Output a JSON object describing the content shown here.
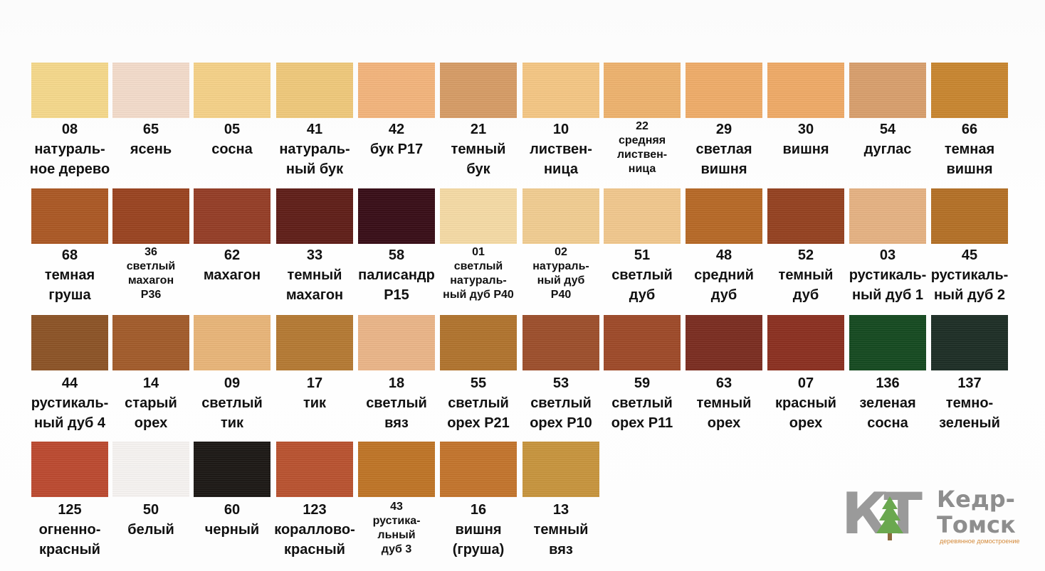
{
  "swatches": [
    {
      "code": "08",
      "name": "натураль-\nное дерево",
      "color": "#f6d98c"
    },
    {
      "code": "65",
      "name": "ясень",
      "color": "#f4dccb"
    },
    {
      "code": "05",
      "name": "сосна",
      "color": "#f6d289"
    },
    {
      "code": "41",
      "name": "натураль-\nный бук",
      "color": "#f0c97c"
    },
    {
      "code": "42",
      "name": "бук Р17",
      "color": "#f4b57d"
    },
    {
      "code": "21",
      "name": "темный\nбук",
      "color": "#d79d67"
    },
    {
      "code": "10",
      "name": "листвен-\nница",
      "color": "#f5c785"
    },
    {
      "code": "22",
      "name": "средняя\nлиствен-\nница",
      "color": "#eeb36f"
    },
    {
      "code": "29",
      "name": "светлая\nвишня",
      "color": "#f0ad6a"
    },
    {
      "code": "30",
      "name": "вишня",
      "color": "#f0ab68"
    },
    {
      "code": "54",
      "name": "дуглас",
      "color": "#d9a06e"
    },
    {
      "code": "66",
      "name": "темная\nвишня",
      "color": "#c98731"
    },
    {
      "code": "68",
      "name": "темная\nгруша",
      "color": "#ac5a26"
    },
    {
      "code": "36",
      "name": "светлый\nмахагон\nР36",
      "color": "#9b4522"
    },
    {
      "code": "62",
      "name": "махагон",
      "color": "#963f28"
    },
    {
      "code": "33",
      "name": "темный\nмахагон",
      "color": "#61201a"
    },
    {
      "code": "58",
      "name": "палисандр\nР15",
      "color": "#3a0f19"
    },
    {
      "code": "01",
      "name": "светлый\nнатураль-\nный дуб Р40",
      "color": "#f6dba6"
    },
    {
      "code": "02",
      "name": "натураль-\nный дуб\nР40",
      "color": "#f2cd92"
    },
    {
      "code": "51",
      "name": "светлый\nдуб",
      "color": "#f2c88e"
    },
    {
      "code": "48",
      "name": "средний\nдуб",
      "color": "#b86a28"
    },
    {
      "code": "52",
      "name": "темный\nдуб",
      "color": "#964322"
    },
    {
      "code": "03",
      "name": "рустикаль-\nный дуб 1",
      "color": "#e6b384"
    },
    {
      "code": "45",
      "name": "рустикаль-\nный дуб 2",
      "color": "#b57228"
    },
    {
      "code": "44",
      "name": "рустикаль-\nный дуб 4",
      "color": "#8d5528"
    },
    {
      "code": "14",
      "name": "старый\nорех",
      "color": "#a35d2c"
    },
    {
      "code": "09",
      "name": "светлый\nтик",
      "color": "#e9b67a"
    },
    {
      "code": "17",
      "name": "тик",
      "color": "#b67b35"
    },
    {
      "code": "18",
      "name": "светлый\nвяз",
      "color": "#ebb689"
    },
    {
      "code": "55",
      "name": "светлый\nорех Р21",
      "color": "#b27530"
    },
    {
      "code": "53",
      "name": "светлый\nорех Р10",
      "color": "#9e502d"
    },
    {
      "code": "59",
      "name": "светлый\nорех Р11",
      "color": "#9f4b2a"
    },
    {
      "code": "63",
      "name": "темный\nорех",
      "color": "#7c2e22"
    },
    {
      "code": "07",
      "name": "красный\nорех",
      "color": "#8c3122"
    },
    {
      "code": "136",
      "name": "зеленая\nсосна",
      "color": "#174b22"
    },
    {
      "code": "137",
      "name": "темно-\nзеленый",
      "color": "#1f3027"
    },
    {
      "code": "125",
      "name": "огненно-\nкрасный",
      "color": "#bd4b32"
    },
    {
      "code": "50",
      "name": "белый",
      "color": "#f7f4f2"
    },
    {
      "code": "60",
      "name": "черный",
      "color": "#1e1a17"
    },
    {
      "code": "123",
      "name": "кораллово-\nкрасный",
      "color": "#ba5432"
    },
    {
      "code": "43",
      "name": "рустика-\nльный\nдуб 3",
      "color": "#c07628"
    },
    {
      "code": "16",
      "name": "вишня\n(груша)",
      "color": "#c4762e"
    },
    {
      "code": "13",
      "name": "темный\nвяз",
      "color": "#c8963f"
    }
  ],
  "logo": {
    "mark": "КТ",
    "name": "Кедр-\nТомск",
    "tagline": "деревянное домостроение",
    "colors": {
      "mark": "#9a9a9a",
      "tree": "#6aa84f",
      "tagline": "#d48a3a"
    }
  }
}
